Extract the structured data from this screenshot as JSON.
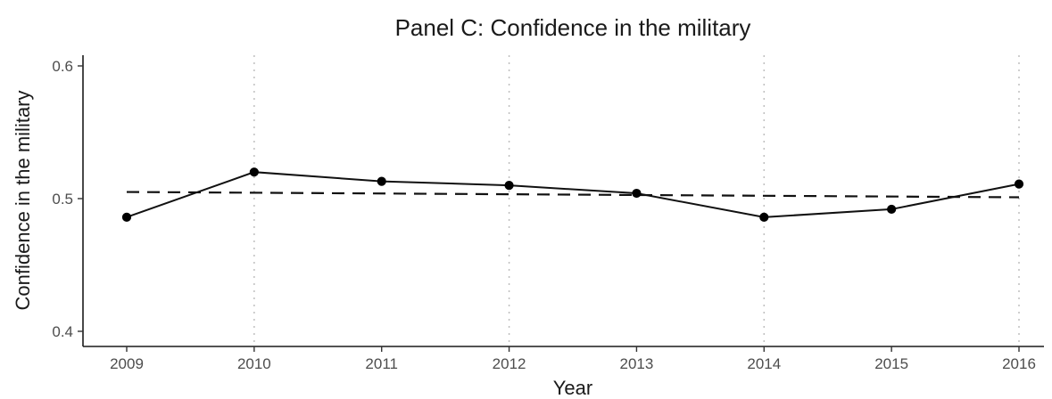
{
  "chart_data": {
    "type": "line",
    "title": "Panel C: Confidence in the military",
    "xlabel": "Year",
    "ylabel": "Confidence in the military",
    "x": [
      2009,
      2010,
      2011,
      2012,
      2013,
      2014,
      2015,
      2016
    ],
    "x_tick_labels": [
      "2009",
      "2010",
      "2011",
      "2012",
      "2013",
      "2014",
      "2015",
      "2016"
    ],
    "y_ticks": [
      0.4,
      0.5,
      0.6
    ],
    "y_tick_labels": [
      "0.4",
      "0.5",
      "0.6"
    ],
    "xlim": [
      2009,
      2016
    ],
    "ylim": [
      0.4,
      0.6
    ],
    "grid": "vertical dotted lines at years 2010, 2012, 2014, 2016",
    "grid_x": [
      2010,
      2012,
      2014,
      2016
    ],
    "series": [
      {
        "style": "solid line with points",
        "values": [
          0.486,
          0.52,
          0.513,
          0.51,
          0.504,
          0.486,
          0.492,
          0.511
        ]
      },
      {
        "style": "dashed linear trend",
        "x": [
          2009,
          2016
        ],
        "values": [
          0.505,
          0.501
        ]
      }
    ]
  }
}
